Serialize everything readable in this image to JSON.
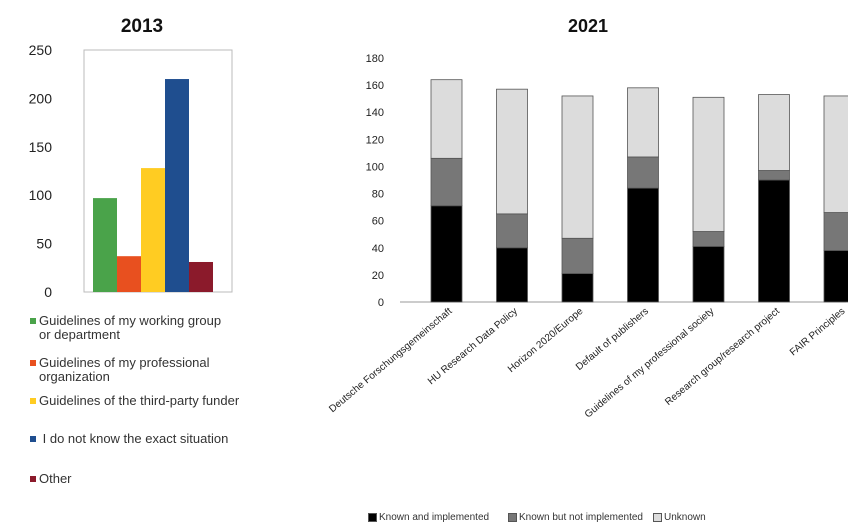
{
  "chart_data": [
    {
      "type": "bar",
      "title": "2013",
      "ylim": [
        0,
        250
      ],
      "yticks": [
        0,
        50,
        100,
        150,
        200,
        250
      ],
      "grid": false,
      "legend_position": "bottom",
      "categories": [
        "Guidelines of my working group or department",
        "Guidelines of my professional organization",
        "Guidelines of the third-party funder",
        "I do not know the exact situation",
        "Other"
      ],
      "legend_lines": [
        [
          "Guidelines of my working group",
          "or department"
        ],
        [
          "Guidelines of my professional",
          "organization"
        ],
        [
          "Guidelines of the third-party funder"
        ],
        [
          " I do not know the exact situation"
        ],
        [
          "Other"
        ]
      ],
      "values": [
        97,
        37,
        128,
        220,
        31
      ],
      "colors": [
        "#4aa34a",
        "#e8501f",
        "#ffcc22",
        "#1f4e8f",
        "#8b1a2b"
      ]
    },
    {
      "type": "bar",
      "stacked": true,
      "title": "2021",
      "ylim": [
        0,
        180
      ],
      "yticks": [
        0,
        20,
        40,
        60,
        80,
        100,
        120,
        140,
        160,
        180
      ],
      "grid": false,
      "legend_position": "bottom",
      "categories": [
        "Deutsche Forschungsgemeinschaft",
        "HU Research Data Policy",
        "Horizon 2020/Europe",
        "Default of publishers",
        "Guidelines of my professional society",
        "Research group/research project",
        "FAIR Principles"
      ],
      "series": [
        {
          "name": "Known and implemented",
          "color": "#000000",
          "values": [
            71,
            40,
            21,
            84,
            41,
            90,
            38
          ]
        },
        {
          "name": "Known but not implemented",
          "color": "#777777",
          "values": [
            35,
            25,
            26,
            23,
            11,
            7,
            28
          ]
        },
        {
          "name": "Unknown",
          "color": "#dcdcdc",
          "values": [
            58,
            92,
            105,
            51,
            99,
            56,
            86
          ]
        }
      ]
    }
  ]
}
